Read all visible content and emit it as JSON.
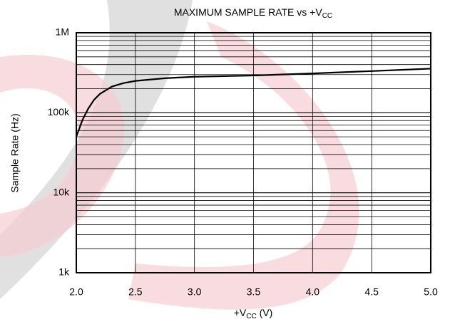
{
  "chart_data": {
    "type": "line",
    "title": [
      "MAXIMUM SAMPLE RATE vs +V",
      "CC"
    ],
    "xlabel": [
      "+V",
      "CC",
      " (V)"
    ],
    "ylabel": "Sample Rate (Hz)",
    "x": [
      2.0,
      2.05,
      2.1,
      2.15,
      2.2,
      2.3,
      2.4,
      2.5,
      2.75,
      3.0,
      3.5,
      4.0,
      4.5,
      5.0
    ],
    "series": [
      {
        "name": "Sample Rate",
        "color": "#000000",
        "values": [
          50000,
          80000,
          112000,
          145000,
          172000,
          212000,
          235000,
          250000,
          270000,
          282000,
          292000,
          310000,
          332000,
          356000
        ]
      }
    ],
    "xlim": [
      2,
      5
    ],
    "xticks": [
      {
        "value": 2,
        "label": "2.0"
      },
      2.5,
      {
        "value": 3,
        "label": "3.0"
      },
      3.5,
      {
        "value": 4,
        "label": "4.0"
      },
      4.5,
      {
        "value": 5,
        "label": "5.0"
      }
    ],
    "ylim": [
      1000,
      1000000
    ],
    "yticks": [
      {
        "value": 1000,
        "label": "1k"
      },
      {
        "value": 10000,
        "label": "10k"
      },
      {
        "value": 100000,
        "label": "100k"
      },
      {
        "value": 1000000,
        "label": "1M"
      }
    ],
    "ylog": true,
    "grid": true,
    "minor_grid": true
  }
}
